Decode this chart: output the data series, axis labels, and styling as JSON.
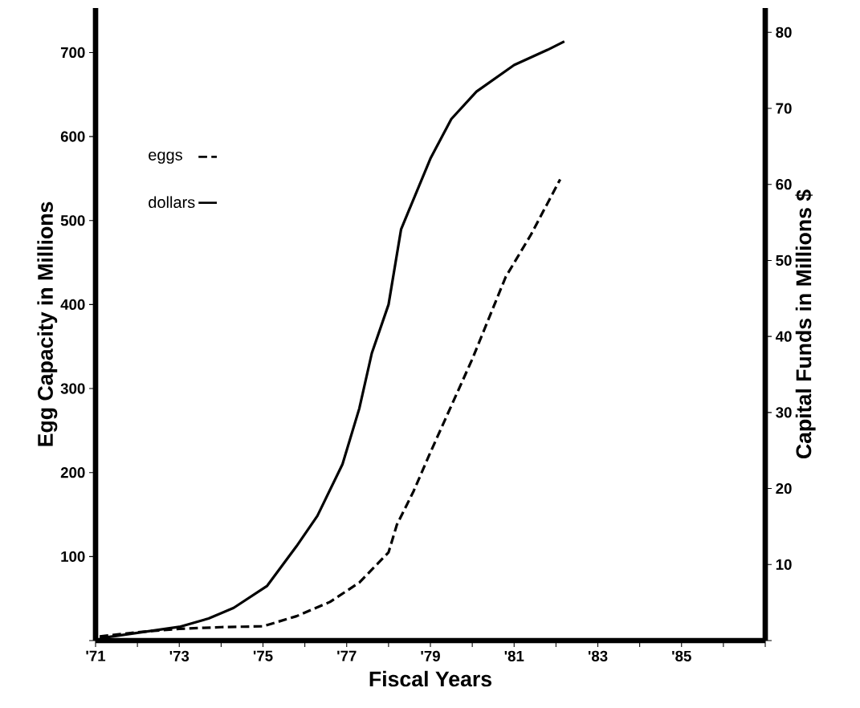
{
  "chart_data": {
    "type": "line",
    "xlabel": "Fiscal Years",
    "ylabel": "Egg Capacity in Millions",
    "y2label": "Capital Funds in Millions $",
    "xlim": [
      1971,
      1987
    ],
    "xticks": [
      {
        "value": 1971,
        "label": "'71"
      },
      {
        "value": 1972,
        "label": null
      },
      {
        "value": 1973,
        "label": "'73"
      },
      {
        "value": 1974,
        "label": null
      },
      {
        "value": 1975,
        "label": "'75"
      },
      {
        "value": 1976,
        "label": null
      },
      {
        "value": 1977,
        "label": "'77"
      },
      {
        "value": 1978,
        "label": null
      },
      {
        "value": 1979,
        "label": "'79"
      },
      {
        "value": 1980,
        "label": null
      },
      {
        "value": 1981,
        "label": "'81"
      },
      {
        "value": 1982,
        "label": null
      },
      {
        "value": 1983,
        "label": "'83"
      },
      {
        "value": 1984,
        "label": null
      },
      {
        "value": 1985,
        "label": "'85"
      },
      {
        "value": 1986,
        "label": null
      },
      {
        "value": 1987,
        "label": null
      }
    ],
    "ylim": [
      0,
      753
    ],
    "yticks": [
      {
        "value": 0,
        "label": null
      },
      100,
      200,
      300,
      400,
      500,
      600,
      700
    ],
    "y2lim": [
      0,
      83.2
    ],
    "y2ticks": [
      {
        "value": 0,
        "label": null
      },
      10,
      20,
      30,
      40,
      50,
      60,
      70,
      80
    ],
    "legend": "top left",
    "marker": "none",
    "series": [
      {
        "name": "eggs",
        "color": "#000000",
        "line_style": "dashed",
        "x": [
          1971.1,
          1972.0,
          1973.0,
          1974.0,
          1975.0,
          1975.8,
          1976.6,
          1977.3,
          1978.0,
          1978.2,
          1978.6,
          1979.0,
          1980.0,
          1980.8,
          1981.4,
          1982.1
        ],
        "values": [
          5,
          10,
          14,
          16,
          17,
          29,
          46,
          69,
          105,
          138,
          178,
          224,
          335,
          433,
          483,
          549
        ]
      },
      {
        "name": "dollars",
        "color": "#000000",
        "line_style": "solid",
        "axis": "y2",
        "x": [
          1971.1,
          1973.0,
          1973.7,
          1974.3,
          1975.1,
          1975.8,
          1976.3,
          1976.9,
          1977.3,
          1977.6,
          1978.0,
          1978.3,
          1979.0,
          1979.5,
          1980.1,
          1981.0,
          1981.8,
          1982.2
        ],
        "values": [
          0.3,
          1.8,
          2.9,
          4.3,
          7.2,
          12.4,
          16.4,
          23.2,
          30.5,
          37.8,
          44.2,
          54.1,
          63.4,
          68.6,
          72.2,
          75.7,
          77.7,
          78.8
        ]
      }
    ]
  }
}
